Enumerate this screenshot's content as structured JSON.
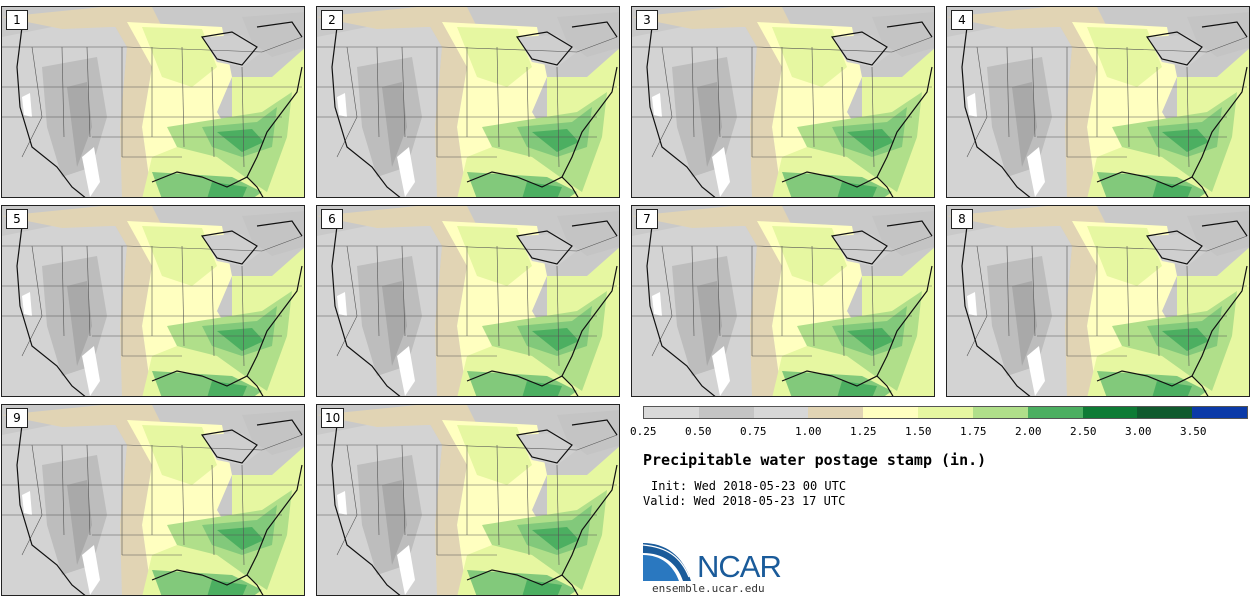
{
  "panels": [
    {
      "label": "1"
    },
    {
      "label": "2"
    },
    {
      "label": "3"
    },
    {
      "label": "4"
    },
    {
      "label": "5"
    },
    {
      "label": "6"
    },
    {
      "label": "7"
    },
    {
      "label": "8"
    },
    {
      "label": "9"
    },
    {
      "label": "10"
    }
  ],
  "colorbar": {
    "colors": [
      "#d9d9d9",
      "#c4c4c4",
      "#d7d7d7",
      "#e1d4b4",
      "#ffffc0",
      "#e6f7a1",
      "#b0df8a",
      "#4caf61",
      "#0e7b35",
      "#105a2e",
      "#0b3aa8"
    ],
    "ticks": [
      "0.25",
      "0.50",
      "0.75",
      "1.00",
      "1.25",
      "1.50",
      "1.75",
      "2.00",
      "2.50",
      "3.00",
      "3.50"
    ]
  },
  "title": "Precipitable water postage stamp (in.)",
  "init_line": "Init: Wed 2018-05-23 00 UTC",
  "valid_line": "Valid: Wed 2018-05-23 17 UTC",
  "logo": {
    "text": "NCAR",
    "site": "ensemble.ucar.edu",
    "brand_color": "#1a5b9a"
  }
}
